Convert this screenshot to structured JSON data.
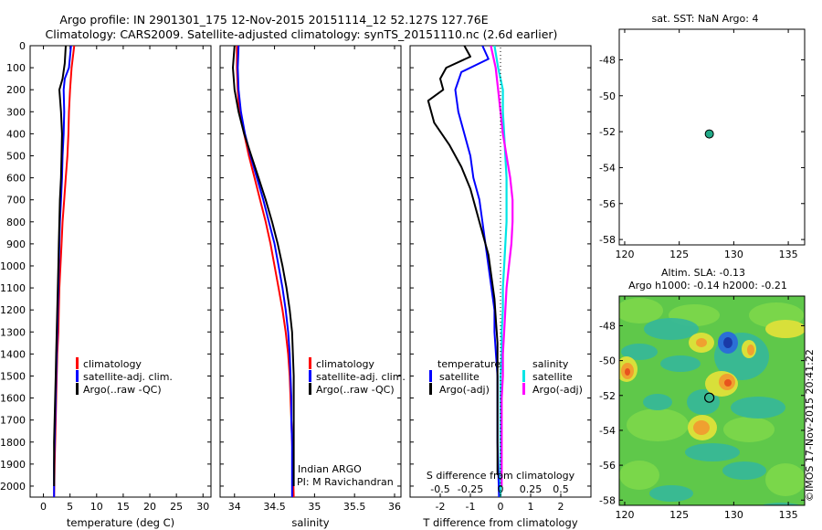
{
  "header": {
    "title_line1": "Argo profile: IN 2901301_175 12-Nov-2015 20151114_12 52.127S 127.76E",
    "title_line2": "Climatology: CARS2009. Satellite-adjusted climatology: synTS_20151110.nc (2.6d earlier)"
  },
  "colors": {
    "climatology": "#ff0000",
    "satellite": "#0000ff",
    "argo": "#000000",
    "satellite_salinity": "#00e5e5",
    "argo_salinity": "#ff00ff"
  },
  "depth_ticks": [
    "0",
    "100",
    "200",
    "300",
    "400",
    "500",
    "600",
    "700",
    "800",
    "900",
    "1000",
    "1100",
    "1200",
    "1300",
    "1400",
    "1500",
    "1600",
    "1700",
    "1800",
    "1900",
    "2000"
  ],
  "temperature_panel": {
    "xlabel": "temperature (deg C)",
    "xticks": [
      "0",
      "5",
      "10",
      "15",
      "20",
      "25",
      "30"
    ],
    "legend": [
      {
        "label": "climatology",
        "color": "#ff0000"
      },
      {
        "label": "satellite-adj. clim.",
        "color": "#0000ff"
      },
      {
        "label": "Argo(..raw -QC)",
        "color": "#000000"
      }
    ]
  },
  "salinity_panel": {
    "xlabel": "salinity",
    "xticks": [
      "34",
      "34.5",
      "35",
      "35.5",
      "36"
    ],
    "legend": [
      {
        "label": "climatology",
        "color": "#ff0000"
      },
      {
        "label": "satellite-adj. clim.",
        "color": "#0000ff"
      },
      {
        "label": "Argo(..raw -QC)",
        "color": "#000000"
      }
    ],
    "note_line1": "Indian ARGO",
    "note_line2": "PI: M Ravichandran"
  },
  "difference_panel": {
    "xlabel_top": "S difference from climatology",
    "xlabel_bottom": "T difference from climatology",
    "s_ticks": [
      "-0.5",
      "-0.25",
      "0",
      "0.25",
      "0.5"
    ],
    "t_ticks": [
      "-2",
      "-1",
      "0",
      "1",
      "2"
    ],
    "legend_temperature_header": "temperature",
    "legend_salinity_header": "salinity",
    "legend_temperature": [
      {
        "label": "satellite",
        "color": "#0000ff"
      },
      {
        "label": "Argo(-adj)",
        "color": "#000000"
      }
    ],
    "legend_salinity": [
      {
        "label": "satellite",
        "color": "#00e5e5"
      },
      {
        "label": "Argo(-adj)",
        "color": "#ff00ff"
      }
    ]
  },
  "sst_map": {
    "title": "sat. SST: NaN Argo: 4",
    "yticks": [
      "-48",
      "-50",
      "-52",
      "-54",
      "-56",
      "-58"
    ],
    "xticks": [
      "120",
      "125",
      "130",
      "135"
    ],
    "float_lon": 127.76,
    "float_lat": -52.127
  },
  "sla_map": {
    "title_line1": "Altim. SLA: -0.13",
    "title_line2": "Argo h1000: -0.14 h2000: -0.21",
    "yticks": [
      "-48",
      "-50",
      "-52",
      "-54",
      "-56",
      "-58"
    ],
    "xticks": [
      "120",
      "125",
      "130",
      "135"
    ],
    "side_label": "©IMOS 17-Nov-2015 20:41:22"
  },
  "chart_data": [
    {
      "type": "line",
      "title": "",
      "xlabel": "temperature (deg C)",
      "ylabel": "",
      "xlim": [
        -2.5,
        31.5
      ],
      "ylim": [
        2050,
        0
      ],
      "series": [
        {
          "name": "climatology",
          "color": "#ff0000",
          "points": [
            [
              5.8,
              0
            ],
            [
              5.3,
              100
            ],
            [
              5.0,
              200
            ],
            [
              4.8,
              300
            ],
            [
              4.7,
              400
            ],
            [
              4.5,
              500
            ],
            [
              4.2,
              600
            ],
            [
              3.9,
              700
            ],
            [
              3.6,
              800
            ],
            [
              3.4,
              900
            ],
            [
              3.2,
              1000
            ],
            [
              3.0,
              1100
            ],
            [
              2.9,
              1200
            ],
            [
              2.8,
              1300
            ],
            [
              2.6,
              1400
            ],
            [
              2.5,
              1500
            ],
            [
              2.4,
              1600
            ],
            [
              2.3,
              1700
            ],
            [
              2.2,
              1800
            ],
            [
              2.1,
              1900
            ],
            [
              2.0,
              2050
            ]
          ]
        },
        {
          "name": "satellite-adj. clim.",
          "color": "#0000ff",
          "points": [
            [
              5.2,
              0
            ],
            [
              4.8,
              100
            ],
            [
              4.0,
              150
            ],
            [
              3.8,
              200
            ],
            [
              3.9,
              300
            ],
            [
              3.8,
              400
            ],
            [
              3.6,
              500
            ],
            [
              3.5,
              600
            ],
            [
              3.3,
              700
            ],
            [
              3.1,
              800
            ],
            [
              3.0,
              900
            ],
            [
              2.9,
              1000
            ],
            [
              2.8,
              1100
            ],
            [
              2.7,
              1200
            ],
            [
              2.6,
              1300
            ],
            [
              2.5,
              1400
            ],
            [
              2.4,
              1500
            ],
            [
              2.3,
              1600
            ],
            [
              2.2,
              1700
            ],
            [
              2.1,
              1800
            ],
            [
              2.0,
              1900
            ],
            [
              2.0,
              2050
            ]
          ]
        },
        {
          "name": "Argo(..raw -QC)",
          "color": "#000000",
          "points": [
            [
              4.2,
              0
            ],
            [
              4.0,
              80
            ],
            [
              3.6,
              150
            ],
            [
              3.0,
              200
            ],
            [
              3.3,
              300
            ],
            [
              3.5,
              400
            ],
            [
              3.4,
              500
            ],
            [
              3.3,
              600
            ],
            [
              3.1,
              700
            ],
            [
              3.0,
              800
            ],
            [
              2.9,
              900
            ],
            [
              2.8,
              1000
            ],
            [
              2.7,
              1100
            ],
            [
              2.6,
              1200
            ],
            [
              2.5,
              1300
            ],
            [
              2.4,
              1400
            ],
            [
              2.3,
              1500
            ],
            [
              2.2,
              1600
            ],
            [
              2.1,
              1700
            ],
            [
              2.0,
              1800
            ],
            [
              2.0,
              1900
            ],
            [
              2.0,
              2000
            ]
          ]
        }
      ]
    },
    {
      "type": "line",
      "title": "",
      "xlabel": "salinity",
      "ylabel": "",
      "xlim": [
        33.82,
        36.08
      ],
      "ylim": [
        2050,
        0
      ],
      "series": [
        {
          "name": "climatology",
          "color": "#ff0000",
          "points": [
            [
              34.03,
              0
            ],
            [
              34.03,
              100
            ],
            [
              34.04,
              200
            ],
            [
              34.06,
              300
            ],
            [
              34.12,
              400
            ],
            [
              34.18,
              500
            ],
            [
              34.25,
              600
            ],
            [
              34.32,
              700
            ],
            [
              34.39,
              800
            ],
            [
              34.45,
              900
            ],
            [
              34.5,
              1000
            ],
            [
              34.55,
              1100
            ],
            [
              34.6,
              1200
            ],
            [
              34.64,
              1300
            ],
            [
              34.67,
              1400
            ],
            [
              34.69,
              1500
            ],
            [
              34.7,
              1600
            ],
            [
              34.71,
              1700
            ],
            [
              34.72,
              1800
            ],
            [
              34.73,
              1900
            ],
            [
              34.74,
              2050
            ]
          ]
        },
        {
          "name": "satellite-adj. clim.",
          "color": "#0000ff",
          "points": [
            [
              34.05,
              0
            ],
            [
              34.04,
              100
            ],
            [
              34.05,
              200
            ],
            [
              34.08,
              300
            ],
            [
              34.13,
              400
            ],
            [
              34.2,
              500
            ],
            [
              34.28,
              600
            ],
            [
              34.36,
              700
            ],
            [
              34.43,
              800
            ],
            [
              34.5,
              900
            ],
            [
              34.55,
              1000
            ],
            [
              34.6,
              1100
            ],
            [
              34.64,
              1200
            ],
            [
              34.67,
              1300
            ],
            [
              34.69,
              1400
            ],
            [
              34.7,
              1500
            ],
            [
              34.71,
              1600
            ],
            [
              34.71,
              1700
            ],
            [
              34.72,
              1800
            ],
            [
              34.72,
              1900
            ],
            [
              34.72,
              2050
            ]
          ]
        },
        {
          "name": "Argo(..raw -QC)",
          "color": "#000000",
          "points": [
            [
              34.0,
              0
            ],
            [
              33.98,
              100
            ],
            [
              34.0,
              200
            ],
            [
              34.05,
              300
            ],
            [
              34.12,
              400
            ],
            [
              34.21,
              500
            ],
            [
              34.3,
              600
            ],
            [
              34.39,
              700
            ],
            [
              34.47,
              800
            ],
            [
              34.54,
              900
            ],
            [
              34.6,
              1000
            ],
            [
              34.65,
              1100
            ],
            [
              34.69,
              1200
            ],
            [
              34.72,
              1300
            ],
            [
              34.73,
              1400
            ],
            [
              34.74,
              1500
            ],
            [
              34.74,
              1600
            ],
            [
              34.74,
              1700
            ],
            [
              34.74,
              1800
            ],
            [
              34.74,
              1900
            ],
            [
              34.74,
              2000
            ]
          ]
        }
      ]
    },
    {
      "type": "line",
      "title": "",
      "xlabel": "T difference from climatology",
      "ylabel": "",
      "xlim": [
        -3.0,
        3.0
      ],
      "ylim": [
        2050,
        0
      ],
      "series": [
        {
          "name": "satellite",
          "color": "#0000ff",
          "variable": "temperature",
          "points": [
            [
              -0.6,
              0
            ],
            [
              -0.4,
              60
            ],
            [
              -1.3,
              120
            ],
            [
              -1.5,
              200
            ],
            [
              -1.4,
              300
            ],
            [
              -1.2,
              400
            ],
            [
              -1.0,
              500
            ],
            [
              -0.9,
              600
            ],
            [
              -0.7,
              700
            ],
            [
              -0.6,
              800
            ],
            [
              -0.5,
              900
            ],
            [
              -0.4,
              1000
            ],
            [
              -0.3,
              1100
            ],
            [
              -0.2,
              1200
            ],
            [
              -0.2,
              1300
            ],
            [
              -0.15,
              1400
            ],
            [
              -0.1,
              1500
            ],
            [
              -0.1,
              1600
            ],
            [
              -0.1,
              1700
            ],
            [
              -0.1,
              1800
            ],
            [
              -0.05,
              2050
            ]
          ]
        },
        {
          "name": "Argo(-adj)",
          "color": "#000000",
          "variable": "temperature",
          "points": [
            [
              -1.2,
              0
            ],
            [
              -1.0,
              50
            ],
            [
              -1.8,
              100
            ],
            [
              -2.0,
              150
            ],
            [
              -1.9,
              200
            ],
            [
              -2.4,
              250
            ],
            [
              -2.2,
              350
            ],
            [
              -1.7,
              450
            ],
            [
              -1.3,
              550
            ],
            [
              -1.0,
              650
            ],
            [
              -0.8,
              750
            ],
            [
              -0.6,
              850
            ],
            [
              -0.4,
              950
            ],
            [
              -0.3,
              1050
            ],
            [
              -0.2,
              1150
            ],
            [
              -0.15,
              1250
            ],
            [
              -0.1,
              1350
            ],
            [
              -0.1,
              1450
            ],
            [
              -0.1,
              1550
            ],
            [
              -0.1,
              1650
            ],
            [
              -0.1,
              1750
            ],
            [
              -0.1,
              1850
            ],
            [
              -0.1,
              1950
            ]
          ]
        }
      ]
    },
    {
      "type": "line",
      "title": "",
      "xlabel": "S difference from climatology",
      "ylabel": "",
      "xlim": [
        -0.75,
        0.75
      ],
      "ylim": [
        2050,
        0
      ],
      "series": [
        {
          "name": "satellite",
          "color": "#00e5e5",
          "variable": "salinity",
          "points": [
            [
              -0.05,
              0
            ],
            [
              -0.02,
              100
            ],
            [
              0.02,
              200
            ],
            [
              0.02,
              300
            ],
            [
              0.03,
              400
            ],
            [
              0.04,
              500
            ],
            [
              0.05,
              600
            ],
            [
              0.05,
              700
            ],
            [
              0.05,
              800
            ],
            [
              0.04,
              900
            ],
            [
              0.03,
              1000
            ],
            [
              0.02,
              1100
            ],
            [
              0.02,
              1200
            ],
            [
              0.01,
              1300
            ],
            [
              0.01,
              1400
            ],
            [
              0.0,
              1500
            ],
            [
              0.0,
              1600
            ],
            [
              0.0,
              1700
            ],
            [
              0.0,
              1800
            ],
            [
              0.0,
              1900
            ],
            [
              0.0,
              2050
            ]
          ]
        },
        {
          "name": "Argo(-adj)",
          "color": "#ff00ff",
          "variable": "salinity",
          "points": [
            [
              -0.08,
              0
            ],
            [
              -0.04,
              100
            ],
            [
              -0.02,
              200
            ],
            [
              0.0,
              300
            ],
            [
              0.02,
              400
            ],
            [
              0.05,
              500
            ],
            [
              0.08,
              600
            ],
            [
              0.1,
              700
            ],
            [
              0.1,
              800
            ],
            [
              0.09,
              900
            ],
            [
              0.07,
              1000
            ],
            [
              0.05,
              1100
            ],
            [
              0.04,
              1200
            ],
            [
              0.03,
              1300
            ],
            [
              0.02,
              1400
            ],
            [
              0.02,
              1500
            ],
            [
              0.01,
              1600
            ],
            [
              0.01,
              1700
            ],
            [
              0.01,
              1800
            ],
            [
              0.01,
              1900
            ],
            [
              0.01,
              2000
            ]
          ]
        }
      ]
    }
  ]
}
